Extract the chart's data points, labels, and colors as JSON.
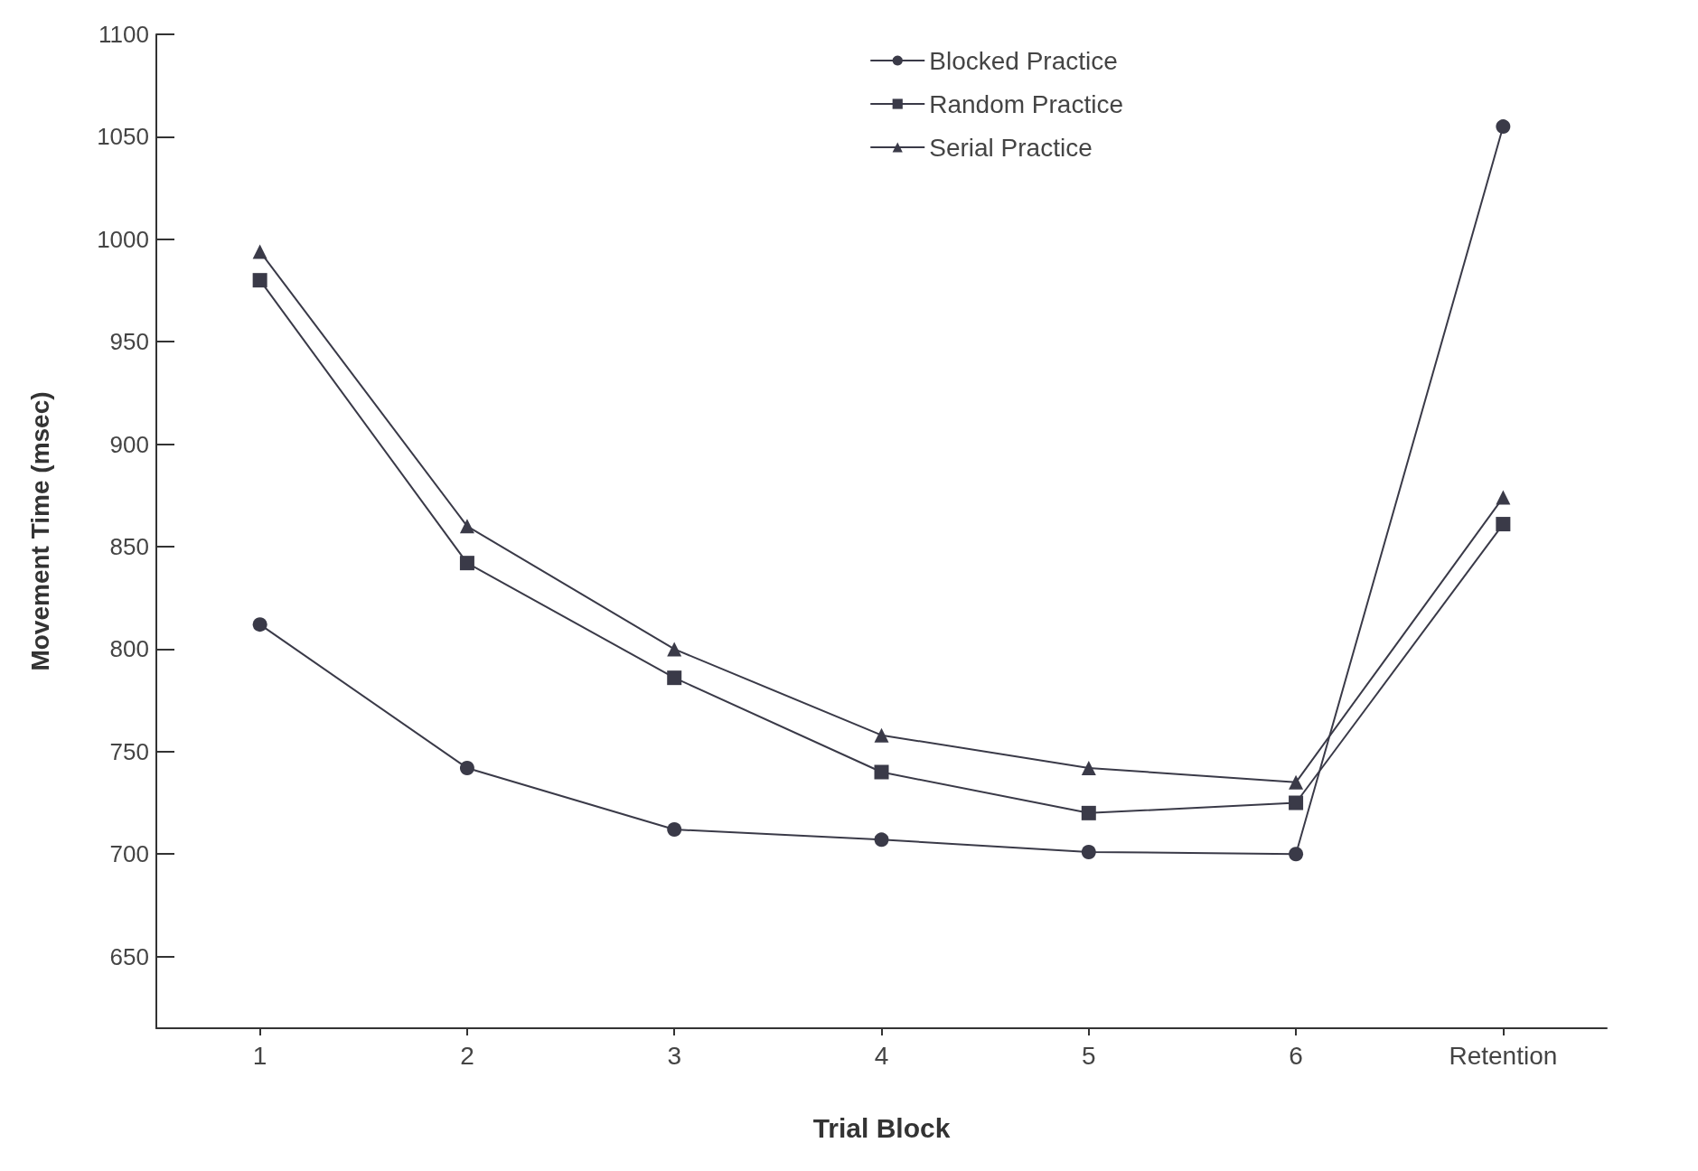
{
  "chart_data": {
    "type": "line",
    "xlabel": "Trial Block",
    "ylabel": "Movement Time (msec)",
    "categories": [
      "1",
      "2",
      "3",
      "4",
      "5",
      "6",
      "Retention"
    ],
    "series": [
      {
        "name": "Blocked Practice",
        "color": "#3a3a48",
        "marker": "circle",
        "values": [
          812,
          742,
          712,
          707,
          701,
          700,
          1055
        ]
      },
      {
        "name": "Random Practice",
        "color": "#3a3a48",
        "marker": "square",
        "values": [
          980,
          842,
          786,
          740,
          720,
          725,
          861
        ]
      },
      {
        "name": "Serial Practice",
        "color": "#3a3a48",
        "marker": "triangle",
        "values": [
          994,
          860,
          800,
          758,
          742,
          735,
          874
        ]
      }
    ],
    "ylim": [
      615,
      1100
    ],
    "yticks": [
      650,
      700,
      750,
      800,
      850,
      900,
      950,
      1000,
      1050,
      1100
    ],
    "grid": false,
    "legend": "top right",
    "line_style": "solid"
  }
}
